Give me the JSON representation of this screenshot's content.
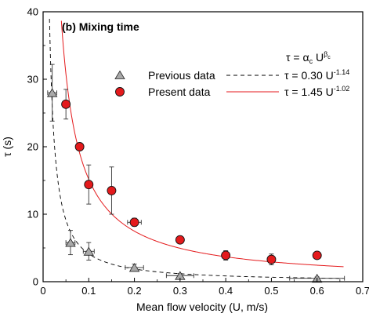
{
  "chart_data": {
    "type": "scatter",
    "title": "(b) Mixing time",
    "xlabel": "Mean flow velocity (U, m/s)",
    "ylabel": "τ (s)",
    "xlim": [
      0,
      0.7
    ],
    "ylim": [
      0,
      40
    ],
    "x_ticks": [
      "0",
      "0.1",
      "0.2",
      "0.3",
      "0.4",
      "0.5",
      "0.6",
      "0.7"
    ],
    "y_ticks": [
      "0",
      "10",
      "20",
      "30",
      "40"
    ],
    "legend_placement": "upper-center",
    "series": [
      {
        "name": "Previous data",
        "marker": "triangle",
        "color": "#a9a9a9",
        "points": [
          {
            "x": 0.02,
            "y": 28.0,
            "yerr": 4.2,
            "xerr": 0.01
          },
          {
            "x": 0.06,
            "y": 5.8,
            "yerr": 1.8,
            "xerr": 0.01
          },
          {
            "x": 0.1,
            "y": 4.5,
            "yerr": 1.3,
            "xerr": 0.012
          },
          {
            "x": 0.2,
            "y": 2.1,
            "yerr": 0.5,
            "xerr": 0.02
          },
          {
            "x": 0.3,
            "y": 0.9,
            "yerr": 0.3,
            "xerr": 0.03
          },
          {
            "x": 0.6,
            "y": 0.5,
            "yerr": 0.2,
            "xerr": 0.06
          }
        ]
      },
      {
        "name": "Present data",
        "marker": "circle",
        "color": "#e41a1c",
        "points": [
          {
            "x": 0.05,
            "y": 26.3,
            "yerr": 2.2
          },
          {
            "x": 0.08,
            "y": 20.0,
            "yerr": 0
          },
          {
            "x": 0.1,
            "y": 14.4,
            "yerr": 2.9
          },
          {
            "x": 0.15,
            "y": 13.5,
            "yerr": 3.5
          },
          {
            "x": 0.2,
            "y": 8.8,
            "yerr": 0.6,
            "xerr": 0.015
          },
          {
            "x": 0.3,
            "y": 6.2,
            "yerr": 0.5
          },
          {
            "x": 0.4,
            "y": 3.9,
            "yerr": 0.7
          },
          {
            "x": 0.5,
            "y": 3.3,
            "yerr": 0.8
          },
          {
            "x": 0.6,
            "y": 3.9,
            "yerr": 0.4
          }
        ]
      }
    ],
    "fits": [
      {
        "name": "τ = 0.30 U",
        "exponent_label": "-1.14",
        "a": 0.3,
        "b": -1.14,
        "style": "dashed",
        "color": "#000000"
      },
      {
        "name": "τ = 1.45 U",
        "exponent_label": "-1.02",
        "a": 1.45,
        "b": -1.02,
        "style": "solid",
        "color": "#e41a1c"
      }
    ],
    "general_formula": {
      "lhs": "τ = ",
      "alpha": "α",
      "alpha_sub": "c",
      "base": " U",
      "beta": "β",
      "beta_sub": "c"
    }
  }
}
